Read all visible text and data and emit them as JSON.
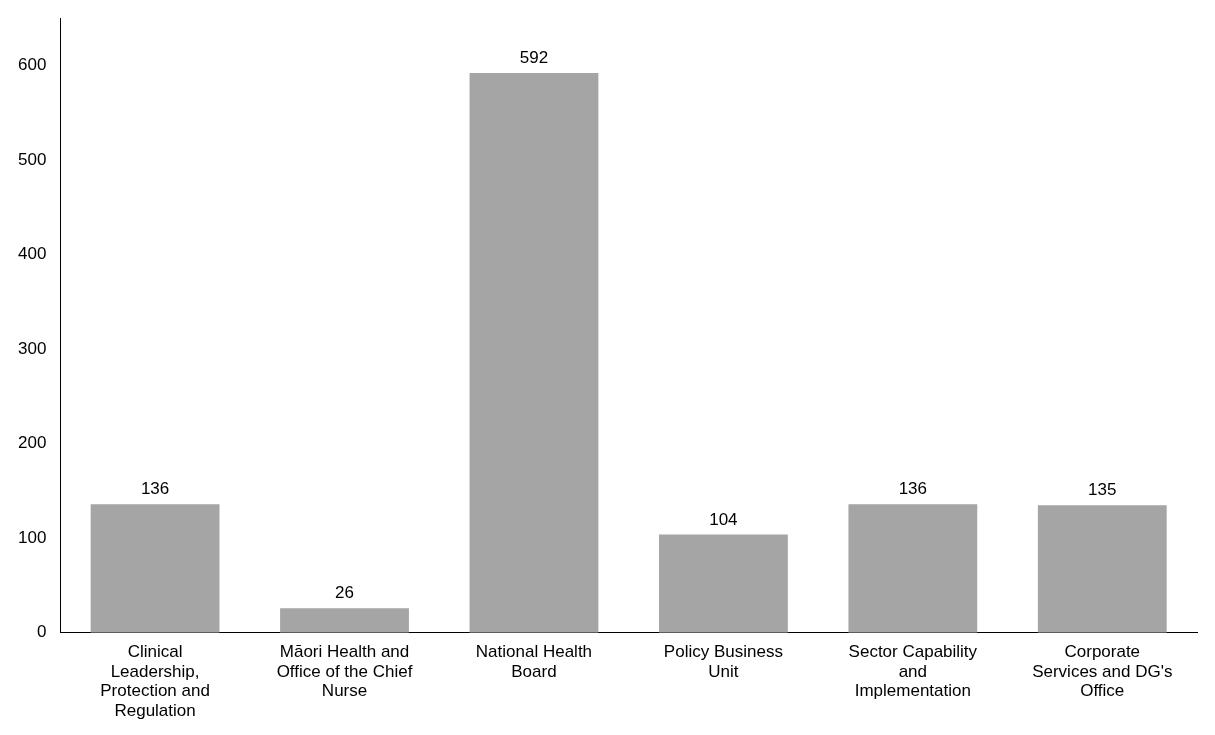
{
  "chart_data": {
    "type": "bar",
    "categories": [
      "Clinical Leadership, Protection and Regulation",
      "Māori Health and Office of the Chief Nurse",
      "National Health Board",
      "Policy Business Unit",
      "Sector Capability and Implementation",
      "Corporate Services and DG's Office"
    ],
    "values": [
      136,
      26,
      592,
      104,
      136,
      135
    ],
    "color": "#a5a5a5",
    "ylim": [
      0,
      650
    ],
    "yticks": [
      0,
      100,
      200,
      300,
      400,
      500,
      600
    ],
    "grid": false,
    "legend": false,
    "data_labels": true
  }
}
